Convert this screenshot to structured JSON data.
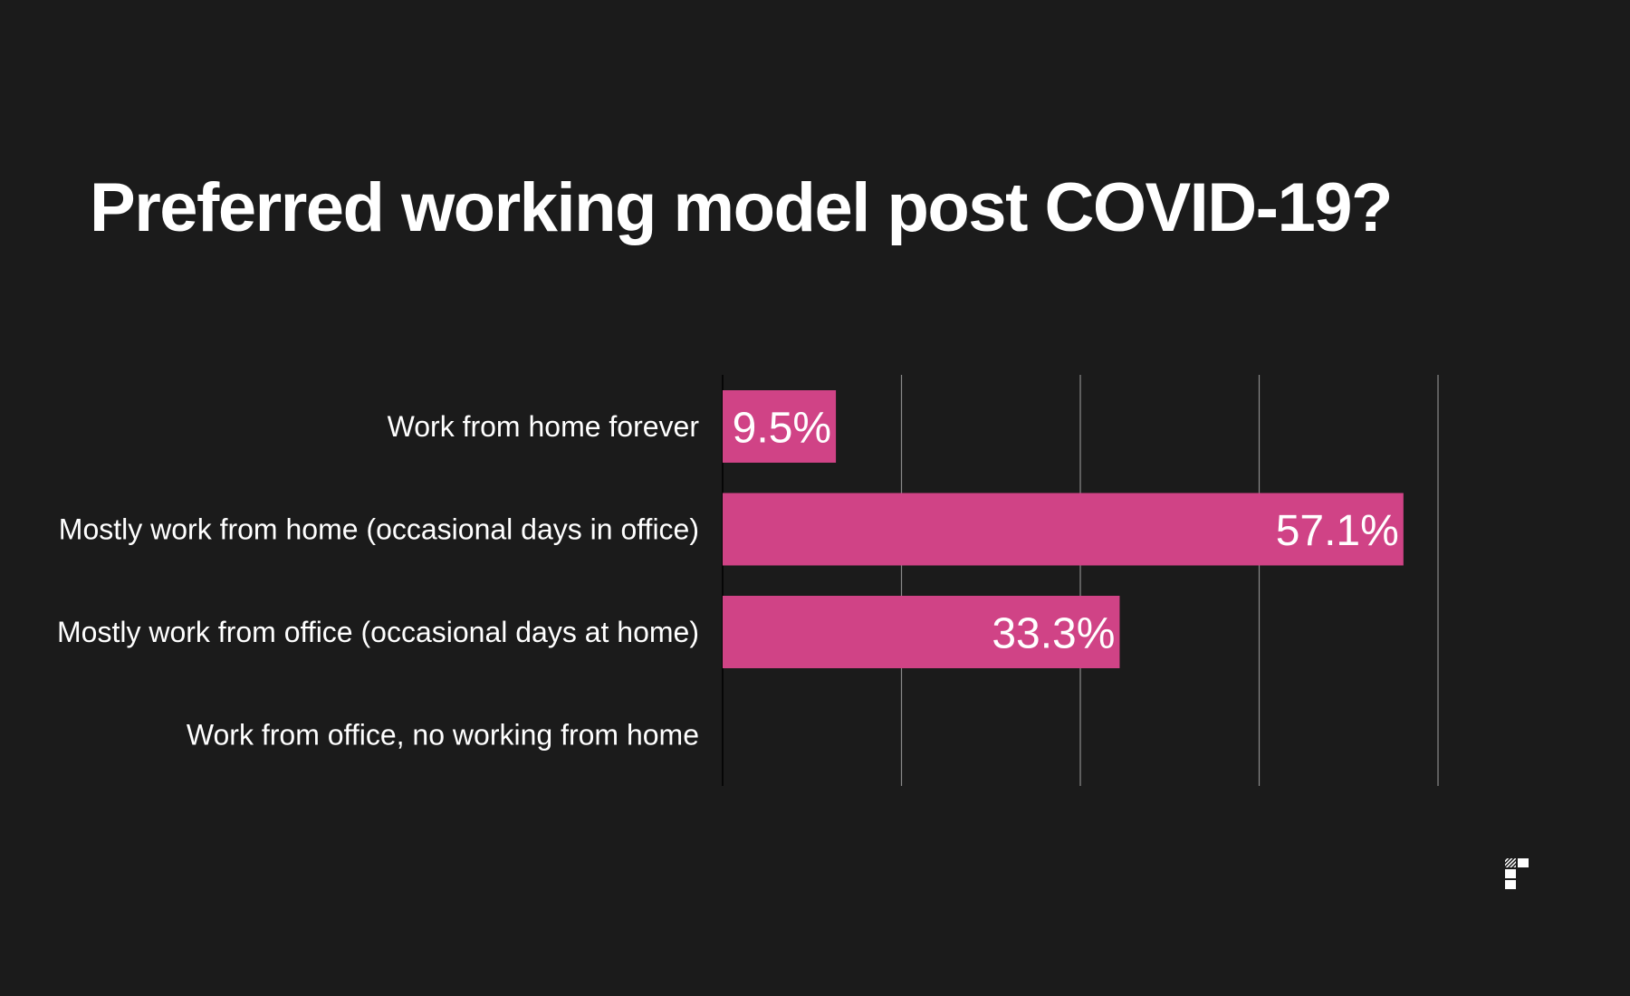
{
  "title": "Preferred working model post COVID-19?",
  "colors": {
    "background": "#1b1b1b",
    "bar": "#d04386",
    "text": "#ffffff",
    "grid": "#8a8a8a"
  },
  "logo": {
    "icon": "brand-logo-icon"
  },
  "chart_data": {
    "type": "bar",
    "orientation": "horizontal",
    "title": "Preferred working model post COVID-19?",
    "categories": [
      "Work from home forever",
      "Mostly work from home (occasional days in office)",
      "Mostly work from office (occasional days at home)",
      "Work from office, no working from home"
    ],
    "values": [
      9.5,
      57.1,
      33.3,
      0
    ],
    "data_labels": [
      "9.5%",
      "57.1%",
      "33.3%",
      ""
    ],
    "xlim": [
      0,
      60
    ],
    "grid": true,
    "grid_step": 15,
    "show_value_axis_labels": false,
    "legend": "none"
  }
}
